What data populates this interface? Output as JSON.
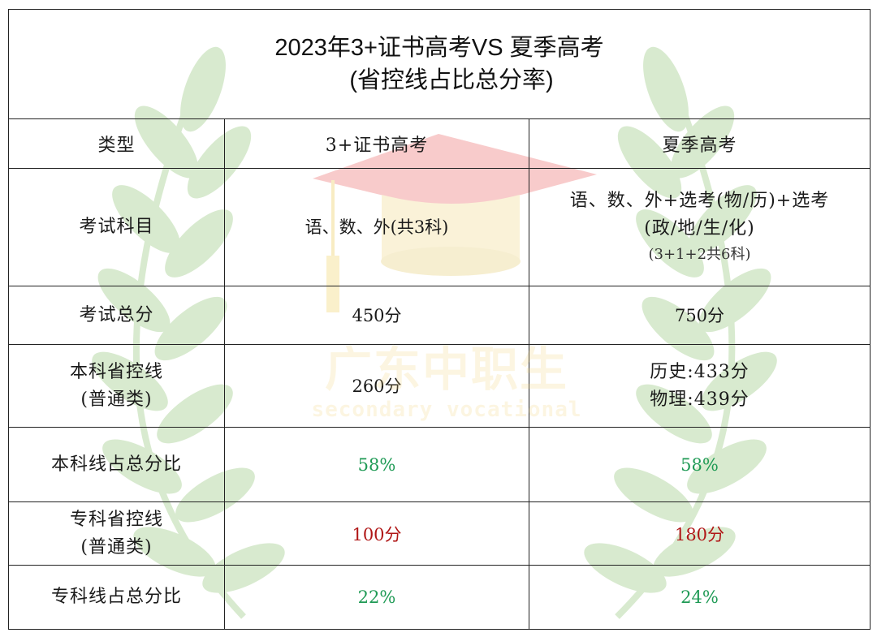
{
  "title": {
    "line1": "2023年3+证书高考VS 夏季高考",
    "line2": "(省控线占比总分率)"
  },
  "header": {
    "col_type": "类型",
    "col_a": "3+证书高考",
    "col_b": "夏季高考"
  },
  "rows": {
    "subjects": {
      "label": "考试科目",
      "a": "语、数、外(共3科)",
      "b_line1": "语、数、外+选考(物/历)+选考",
      "b_line2": "(政/地/生/化)",
      "b_note": "(3+1+2共6科)"
    },
    "total": {
      "label": "考试总分",
      "a": "450分",
      "b": "750分"
    },
    "bachelor_line": {
      "label_line1": "本科省控线",
      "label_line2": "(普通类)",
      "a": "260分",
      "b_line1": "历史:433分",
      "b_line2": "物理:439分"
    },
    "bachelor_pct": {
      "label": "本科线占总分比",
      "a": "58%",
      "b": "58%"
    },
    "junior_line": {
      "label_line1": "专科省控线",
      "label_line2": "(普通类)",
      "a": "100分",
      "b": "180分"
    },
    "junior_pct": {
      "label": "专科线占总分比",
      "a": "22%",
      "b": "24%"
    }
  },
  "watermark": {
    "cn": "广东中职生",
    "en": "secondary vocational"
  },
  "colors": {
    "percent_green": "#1f9a55",
    "score_red": "#b01717",
    "leaf_green": "#b9d9a8",
    "cap_pink": "#f2a1a1",
    "cap_cream": "#f6e7b8"
  }
}
